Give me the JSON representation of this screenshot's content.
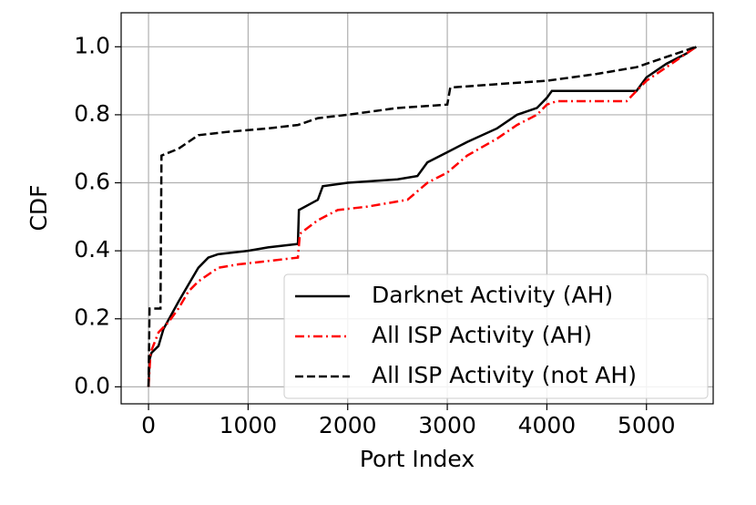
{
  "chart_data": {
    "type": "line",
    "xlabel": "Port Index",
    "ylabel": "CDF",
    "xlim": [
      -275,
      5670
    ],
    "ylim": [
      -0.05,
      1.1
    ],
    "xticks": [
      0,
      1000,
      2000,
      3000,
      4000,
      5000
    ],
    "yticks": [
      {
        "value": 0,
        "label": "0.0"
      },
      {
        "value": 0.2,
        "label": "0.2"
      },
      {
        "value": 0.4,
        "label": "0.4"
      },
      {
        "value": 0.6,
        "label": "0.6"
      },
      {
        "value": 0.8,
        "label": "0.8"
      },
      {
        "value": 1,
        "label": "1.0"
      }
    ],
    "grid": true,
    "legend": "lower right",
    "series": [
      {
        "name": "Darknet Activity (AH)",
        "color": "#000000",
        "dash": "solid",
        "x": [
          0,
          10,
          30,
          100,
          150,
          300,
          400,
          500,
          600,
          700,
          1000,
          1200,
          1500,
          1510,
          1700,
          1750,
          2000,
          2500,
          2700,
          2800,
          3000,
          3200,
          3500,
          3700,
          3900,
          4000,
          4050,
          4900,
          5000,
          5200,
          5400,
          5500
        ],
        "values": [
          0,
          0.08,
          0.1,
          0.12,
          0.17,
          0.25,
          0.3,
          0.35,
          0.38,
          0.39,
          0.4,
          0.41,
          0.42,
          0.52,
          0.55,
          0.59,
          0.6,
          0.61,
          0.62,
          0.66,
          0.69,
          0.72,
          0.76,
          0.8,
          0.82,
          0.85,
          0.87,
          0.87,
          0.91,
          0.95,
          0.98,
          1.0
        ]
      },
      {
        "name": "All ISP Activity (AH)",
        "color": "#ff0000",
        "dash": "dashdot",
        "x": [
          0,
          20,
          100,
          200,
          300,
          400,
          500,
          700,
          900,
          1200,
          1500,
          1520,
          1700,
          1900,
          2200,
          2600,
          2800,
          3000,
          3200,
          3500,
          3700,
          3900,
          4000,
          4100,
          4800,
          5000,
          5200,
          5400,
          5500
        ],
        "values": [
          0,
          0.1,
          0.16,
          0.19,
          0.23,
          0.28,
          0.31,
          0.35,
          0.36,
          0.37,
          0.38,
          0.45,
          0.49,
          0.52,
          0.53,
          0.55,
          0.6,
          0.63,
          0.68,
          0.73,
          0.77,
          0.8,
          0.83,
          0.84,
          0.84,
          0.9,
          0.94,
          0.98,
          1.0
        ]
      },
      {
        "name": "All ISP Activity (not AH)",
        "color": "#000000",
        "dash": "dashed",
        "x": [
          0,
          10,
          120,
          130,
          300,
          400,
          500,
          800,
          1200,
          1500,
          1700,
          2000,
          2500,
          3000,
          3030,
          3500,
          4000,
          4500,
          4900,
          5100,
          5300,
          5500
        ],
        "values": [
          0,
          0.23,
          0.23,
          0.68,
          0.7,
          0.72,
          0.74,
          0.75,
          0.76,
          0.77,
          0.79,
          0.8,
          0.82,
          0.83,
          0.88,
          0.89,
          0.9,
          0.92,
          0.94,
          0.96,
          0.98,
          1.0
        ]
      }
    ]
  }
}
